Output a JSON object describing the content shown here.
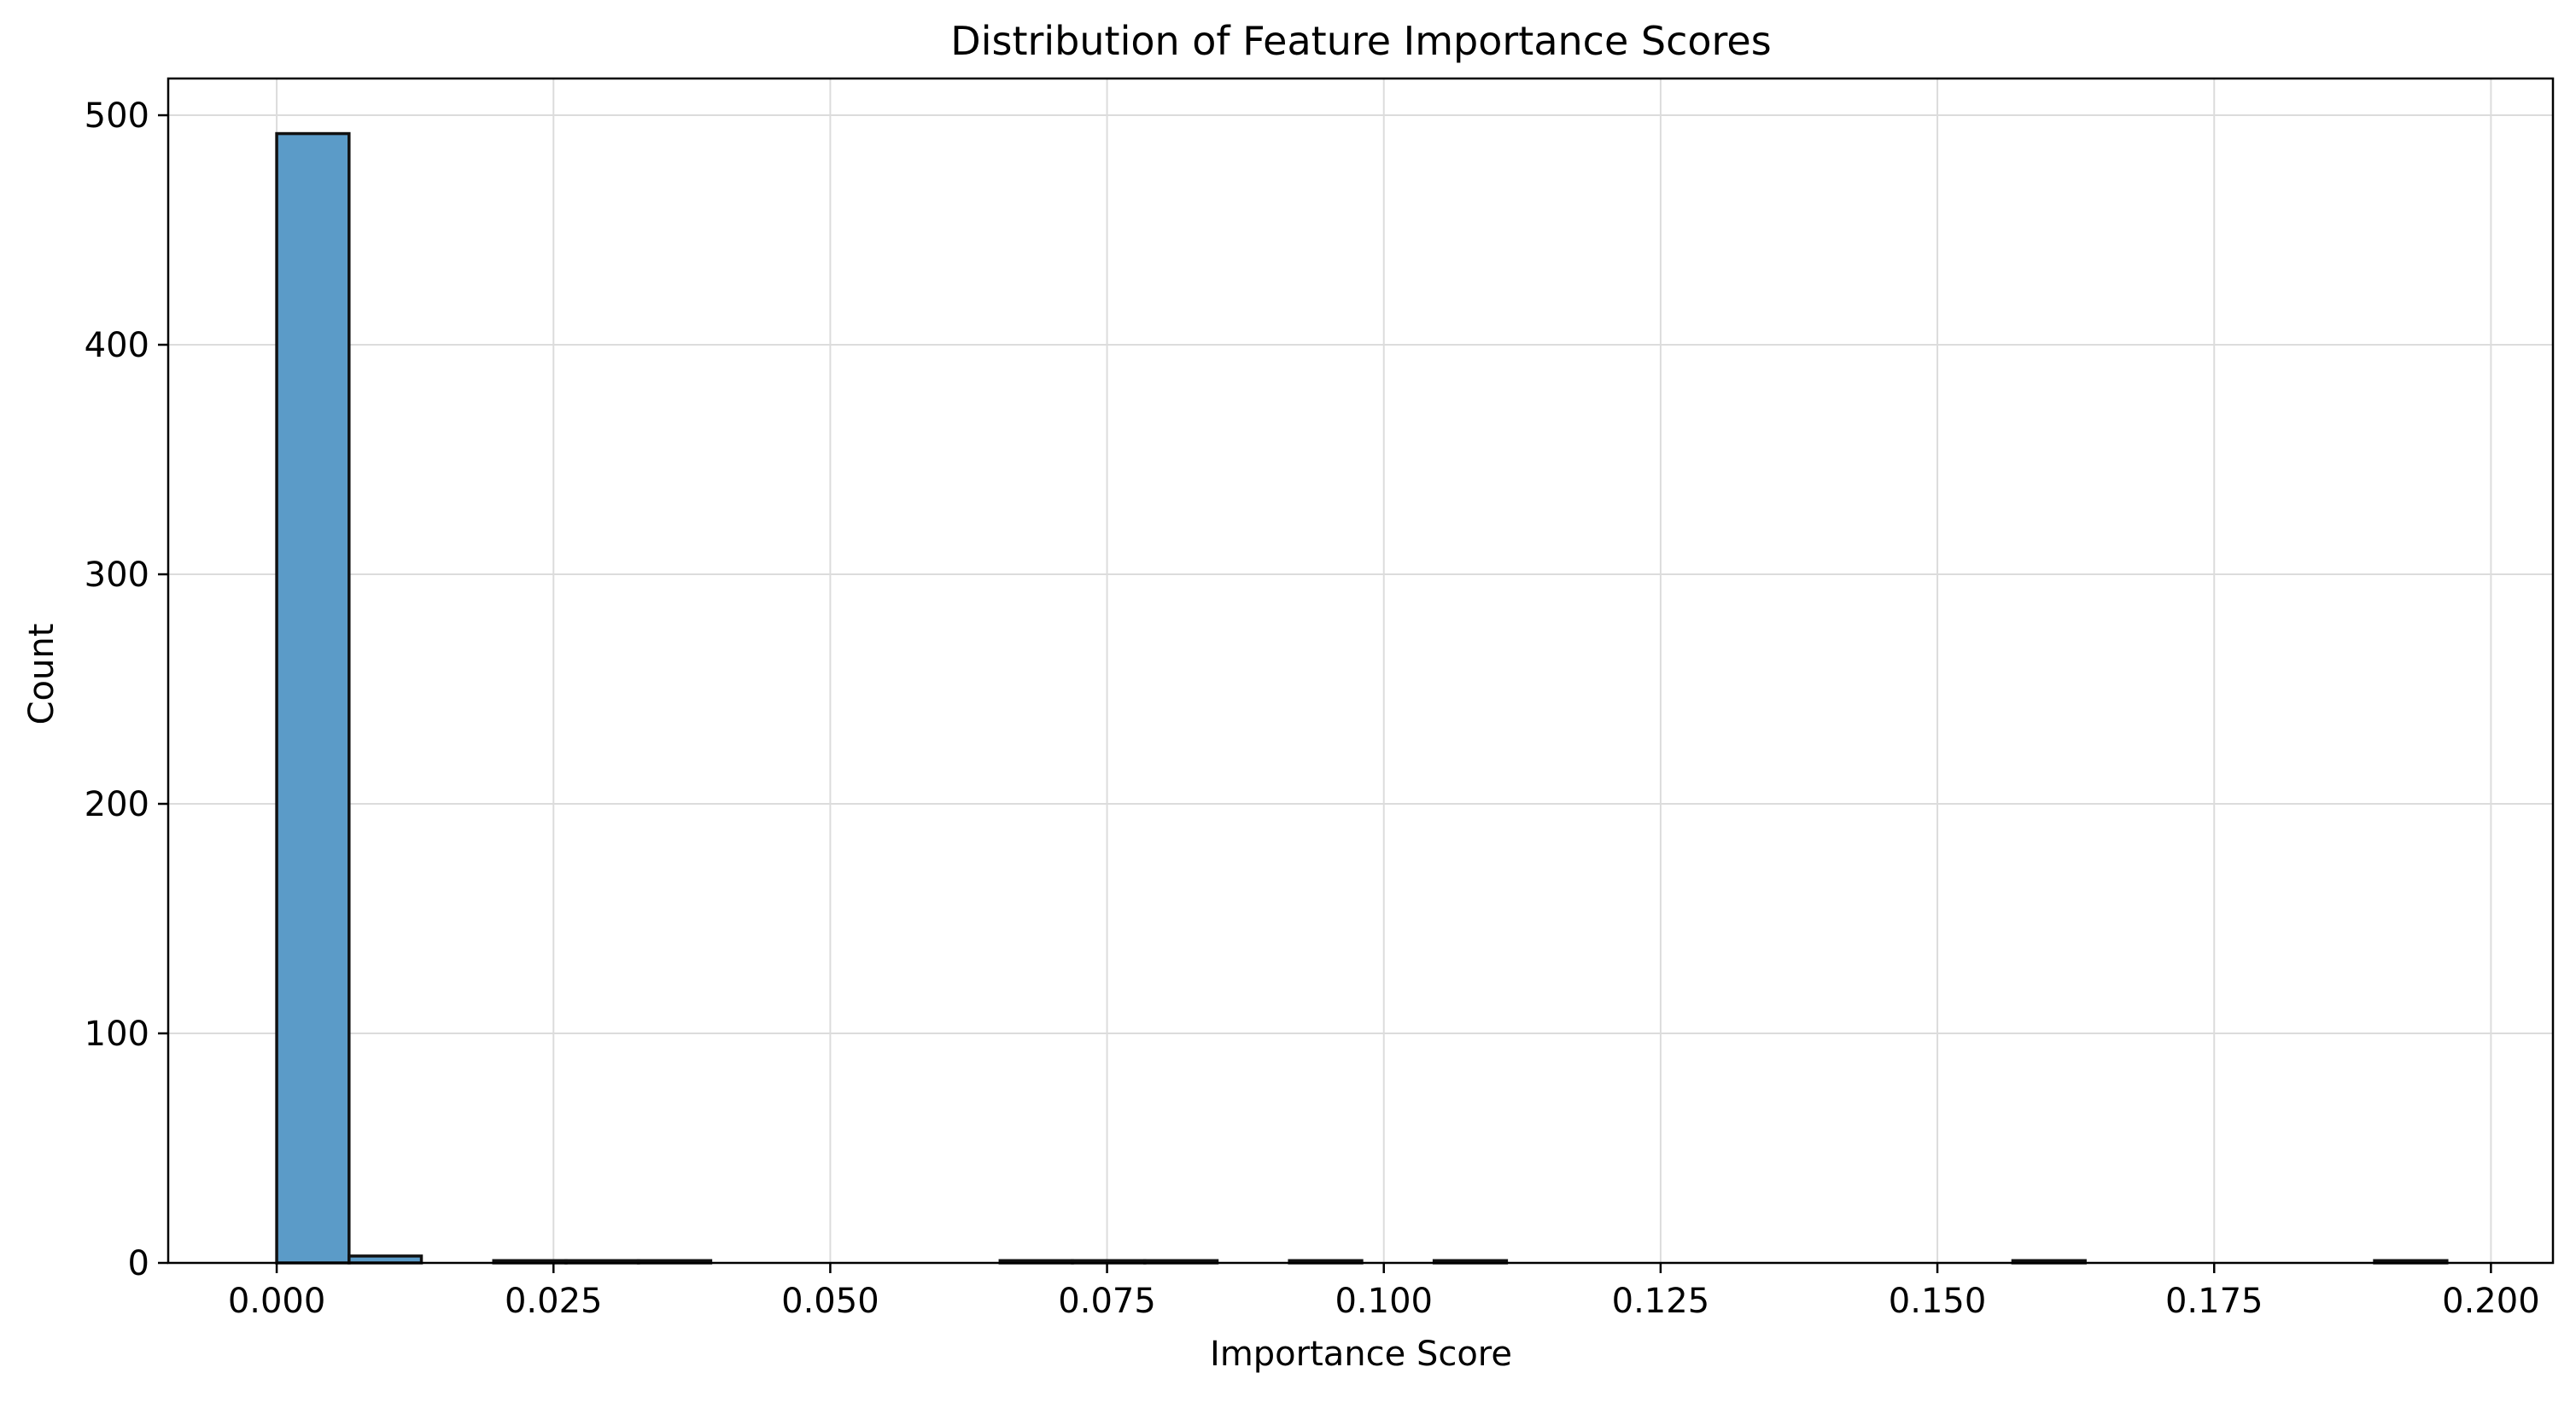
{
  "chart_data": {
    "type": "bar",
    "title": "Distribution of Feature Importance Scores",
    "xlabel": "Importance Score",
    "ylabel": "Count",
    "xlim": [
      -0.0098,
      0.2056
    ],
    "ylim": [
      0,
      516
    ],
    "xticks": [
      0.0,
      0.025,
      0.05,
      0.075,
      0.1,
      0.125,
      0.15,
      0.175,
      0.2
    ],
    "xtick_labels": [
      "0.000",
      "0.025",
      "0.050",
      "0.075",
      "0.100",
      "0.125",
      "0.150",
      "0.175",
      "0.200"
    ],
    "yticks": [
      0,
      100,
      200,
      300,
      400,
      500
    ],
    "ytick_labels": [
      "0",
      "100",
      "200",
      "300",
      "400",
      "500"
    ],
    "grid": true,
    "bar_color": "#5b9bc8",
    "bar_edge_color": "#111111",
    "bins": {
      "start": 0.0,
      "width": 0.006534
    },
    "values": [
      492,
      3,
      0,
      1,
      1,
      1,
      0,
      0,
      0,
      0,
      1,
      1,
      1,
      0,
      1,
      0,
      1,
      0,
      0,
      0,
      0,
      0,
      0,
      0,
      1,
      0,
      0,
      0,
      0,
      1
    ]
  }
}
